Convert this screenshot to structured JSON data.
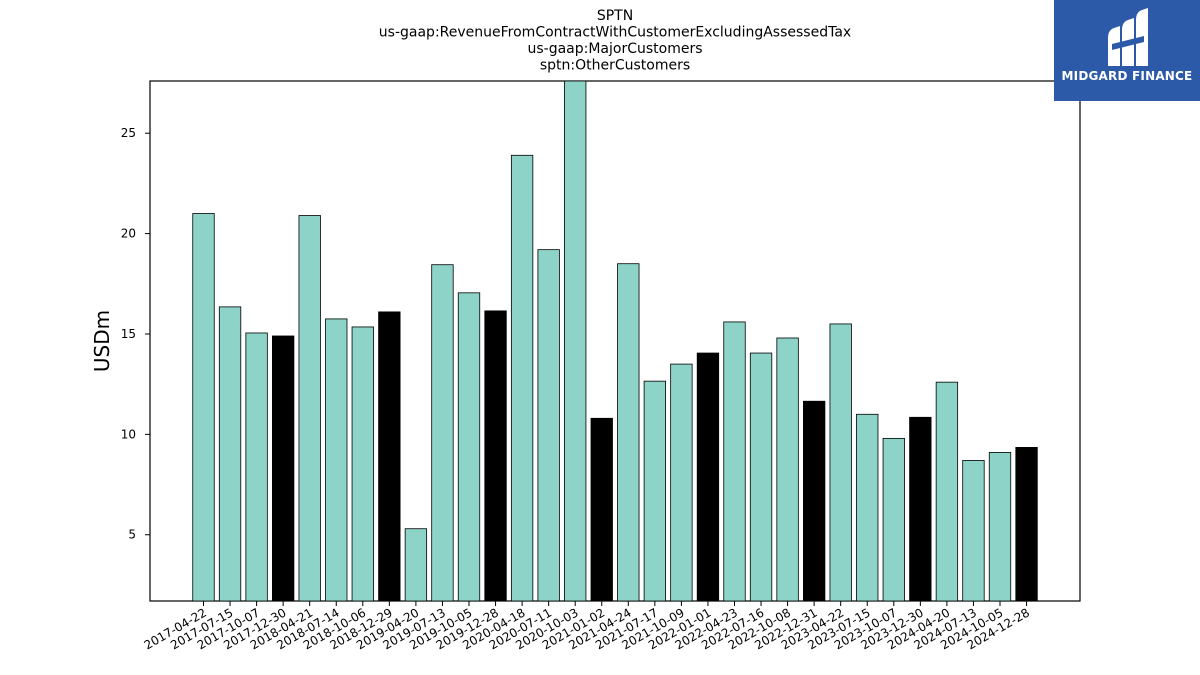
{
  "chart_data": {
    "type": "bar",
    "title_lines": [
      "SPTN",
      "us-gaap:RevenueFromContractWithCustomerExcludingAssessedTax",
      "us-gaap:MajorCustomers",
      "sptn:OtherCustomers"
    ],
    "ylabel": "USDm",
    "xlabel": "",
    "ylim": [
      1.7,
      27.6
    ],
    "yticks": [
      5,
      10,
      15,
      20,
      25
    ],
    "categories": [
      "2017-04-22",
      "2017-07-15",
      "2017-10-07",
      "2017-12-30",
      "2018-04-21",
      "2018-07-14",
      "2018-10-06",
      "2018-12-29",
      "2019-04-20",
      "2019-07-13",
      "2019-10-05",
      "2019-12-28",
      "2020-04-18",
      "2020-07-11",
      "2020-10-03",
      "2021-01-02",
      "2021-04-24",
      "2021-07-17",
      "2021-10-09",
      "2022-01-01",
      "2022-04-23",
      "2022-07-16",
      "2022-10-08",
      "2022-12-31",
      "2023-04-22",
      "2023-07-15",
      "2023-10-07",
      "2023-12-30",
      "2024-04-20",
      "2024-07-13",
      "2024-10-05",
      "2024-12-28"
    ],
    "values": [
      21.0,
      16.35,
      15.05,
      14.9,
      20.9,
      15.75,
      15.35,
      16.1,
      5.3,
      18.45,
      17.05,
      16.15,
      23.9,
      19.2,
      27.8,
      10.8,
      18.5,
      12.65,
      13.5,
      14.05,
      15.6,
      14.05,
      14.8,
      11.65,
      15.5,
      11.0,
      9.8,
      10.85,
      12.6,
      8.7,
      9.1,
      9.35
    ],
    "highlight": [
      false,
      false,
      false,
      true,
      false,
      false,
      false,
      true,
      false,
      false,
      false,
      true,
      false,
      false,
      false,
      true,
      false,
      false,
      false,
      true,
      false,
      false,
      false,
      true,
      false,
      false,
      false,
      true,
      false,
      false,
      false,
      true
    ],
    "colors": {
      "bar": "#8dd3c7",
      "highlight": "#000000",
      "edge": "#000000"
    },
    "grid": false
  },
  "logo": {
    "text": "MIDGARD FINANCE",
    "color": "#2c5aa8"
  }
}
